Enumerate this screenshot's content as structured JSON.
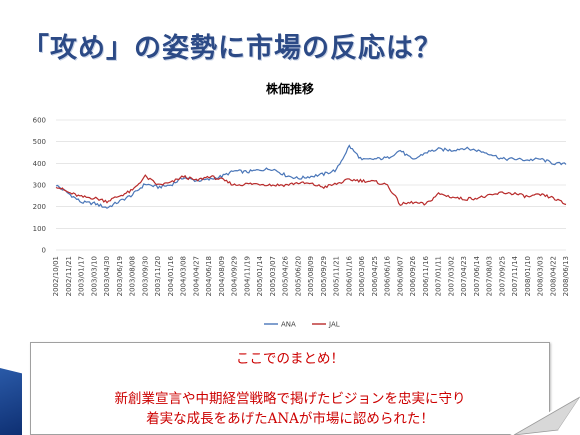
{
  "slide": {
    "title": "「攻め」の姿勢に市場の反応は？"
  },
  "summary": {
    "heading": "ここでのまとめ！",
    "line1": "新創業宣言や中期経営戦略で掲げたビジョンを忠実に守り",
    "line2": "着実な成長をあげたANAが市場に認められた！"
  },
  "chart_data": {
    "type": "line",
    "title": "株価推移",
    "xlabel": "",
    "ylabel": "",
    "ylim": [
      0,
      600
    ],
    "yticks": [
      0,
      100,
      200,
      300,
      400,
      500,
      600
    ],
    "grid": true,
    "legend_position": "bottom",
    "x_tick_labels": [
      "2002/10/01",
      "2002/11/21",
      "2003/01/17",
      "2003/03/10",
      "2003/04/30",
      "2003/06/19",
      "2003/08/08",
      "2003/09/30",
      "2003/11/20",
      "2004/01/16",
      "2004/03/08",
      "2004/04/27",
      "2004/06/18",
      "2004/08/09",
      "2004/09/29",
      "2004/11/19",
      "2005/01/14",
      "2005/03/07",
      "2005/04/26",
      "2005/06/20",
      "2005/08/09",
      "2005/09/29",
      "2005/11/21",
      "2006/01/16",
      "2006/03/06",
      "2006/04/25",
      "2006/06/16",
      "2006/08/07",
      "2006/09/26",
      "2006/11/16",
      "2007/01/11",
      "2007/03/02",
      "2007/04/23",
      "2007/06/14",
      "2007/08/03",
      "2007/09/25",
      "2007/11/14",
      "2008/01/10",
      "2008/03/03",
      "2008/04/22",
      "2008/06/13"
    ],
    "series": [
      {
        "name": "ANA",
        "color": "#4a76b8",
        "values": [
          300,
          260,
          220,
          215,
          195,
          225,
          255,
          305,
          290,
          300,
          335,
          320,
          325,
          340,
          365,
          360,
          370,
          375,
          345,
          330,
          340,
          350,
          370,
          480,
          415,
          420,
          425,
          460,
          415,
          450,
          465,
          460,
          470,
          460,
          445,
          420,
          420,
          415,
          420,
          400,
          395
        ]
      },
      {
        "name": "JAL",
        "color": "#b82b2b",
        "values": [
          295,
          265,
          245,
          240,
          225,
          250,
          275,
          340,
          300,
          310,
          340,
          320,
          340,
          325,
          300,
          305,
          305,
          300,
          300,
          310,
          305,
          290,
          305,
          325,
          320,
          315,
          300,
          210,
          220,
          210,
          260,
          245,
          235,
          240,
          250,
          265,
          260,
          245,
          255,
          240,
          210
        ]
      }
    ]
  }
}
